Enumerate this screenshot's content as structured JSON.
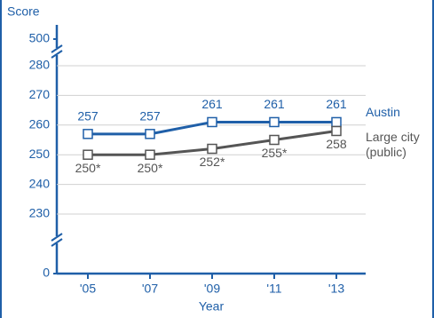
{
  "chart_data": {
    "type": "line",
    "y_label": "Score",
    "x_label": "Year",
    "categories": [
      "'05",
      "'07",
      "'09",
      "'11",
      "'13"
    ],
    "series": [
      {
        "name": "Austin",
        "color": "#1f5fa8",
        "values": [
          257,
          257,
          261,
          261,
          261
        ]
      },
      {
        "name": "Large city (public)",
        "color": "#555555",
        "values": [
          250,
          250,
          252,
          255,
          258
        ],
        "value_labels": [
          "250*",
          "250*",
          "252*",
          "255*",
          "258"
        ]
      }
    ],
    "ylim": [
      0,
      500
    ],
    "yticks": [
      0,
      230,
      240,
      250,
      260,
      270,
      280,
      500
    ],
    "grid": true,
    "axis_break": true
  }
}
